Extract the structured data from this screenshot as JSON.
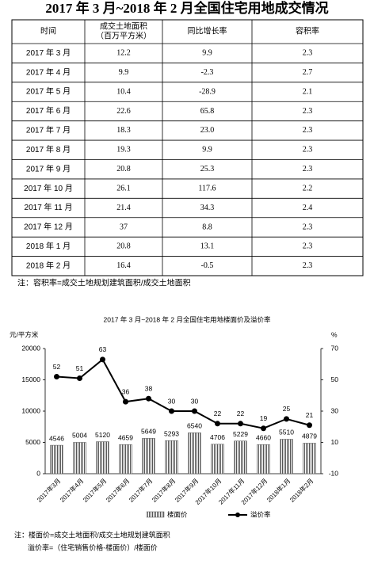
{
  "title": "2017 年 3 月~2018 年 2 月全国住宅用地成交情况",
  "table": {
    "header": [
      [
        "时间"
      ],
      [
        "成交土地面积",
        "（百万平方米）"
      ],
      [
        "同比增长率"
      ],
      [
        "容积率"
      ]
    ],
    "rows": [
      [
        "2017 年 3 月",
        "12.2",
        "9.9",
        "2.3"
      ],
      [
        "2017 年 4 月",
        "9.9",
        "-2.3",
        "2.7"
      ],
      [
        "2017 年 5 月",
        "10.4",
        "-28.9",
        "2.1"
      ],
      [
        "2017 年 6 月",
        "22.6",
        "65.8",
        "2.3"
      ],
      [
        "2017 年 7 月",
        "18.3",
        "23.0",
        "2.3"
      ],
      [
        "2017 年 8 月",
        "19.3",
        "9.9",
        "2.3"
      ],
      [
        "2017 年 9 月",
        "20.8",
        "25.3",
        "2.3"
      ],
      [
        "2017 年 10 月",
        "26.1",
        "117.6",
        "2.2"
      ],
      [
        "2017 年 11 月",
        "21.4",
        "34.3",
        "2.4"
      ],
      [
        "2017 年 12 月",
        "37",
        "8.8",
        "2.3"
      ],
      [
        "2018 年 1 月",
        "20.8",
        "13.1",
        "2.3"
      ],
      [
        "2018 年 2 月",
        "16.4",
        "-0.5",
        "2.3"
      ]
    ]
  },
  "table_note": "注：容积率=成交土地规划建筑面积/成交土地面积",
  "chart_data": {
    "type": "bar-line",
    "title": "2017 年 3 月~2018 年 2 月全国住宅用地楼面价及溢价率",
    "y_label": "元/平方米",
    "y2_label": "%",
    "categories": [
      "2017年3月",
      "2017年4月",
      "2017年5月",
      "2017年6月",
      "2017年7月",
      "2017年8月",
      "2017年9月",
      "2017年10月",
      "2017年11月",
      "2017年12月",
      "2018年1月",
      "2018年2月"
    ],
    "series": [
      {
        "name": "楼面价",
        "type": "bar",
        "color": "#555555",
        "values": [
          4546,
          5004,
          5120,
          4659,
          5649,
          5293,
          6540,
          4706,
          5229,
          4660,
          5510,
          4879
        ]
      },
      {
        "name": "溢价率",
        "type": "line",
        "axis": "y2",
        "color": "#000000",
        "values": [
          52,
          51,
          63,
          36,
          38,
          30,
          30,
          22,
          22,
          19,
          25,
          21
        ]
      }
    ],
    "ylim": [
      0,
      20000
    ],
    "yticks": [
      0,
      5000,
      10000,
      15000,
      20000
    ],
    "y2lim": [
      -10,
      70
    ],
    "y2ticks": [
      -10,
      10,
      30,
      50,
      70
    ]
  },
  "notes": [
    "注：楼面价=成交土地面积/成交土地规划建筑面积",
    "溢价率=（住宅销售价格-楼面价）/楼面价"
  ]
}
